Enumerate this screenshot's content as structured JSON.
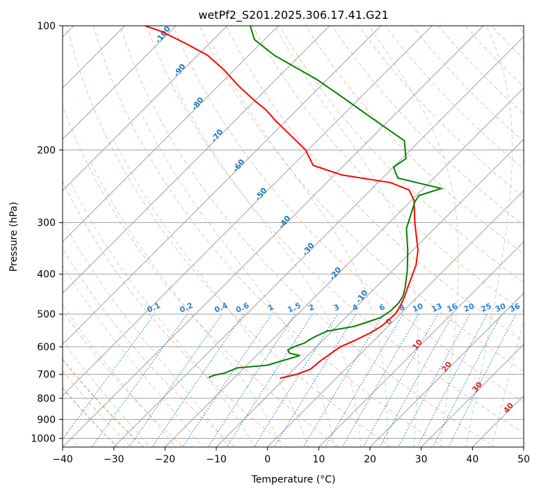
{
  "chart_data": {
    "type": "skew-t",
    "title": "wetPf2_S201.2025.306.17.41.G21",
    "xlabel": "Temperature (°C)",
    "ylabel": "Pressure (hPa)",
    "xlim": [
      -40,
      50
    ],
    "ylim_pressure": [
      1050,
      100
    ],
    "x_ticks": [
      -40,
      -30,
      -20,
      -10,
      0,
      10,
      20,
      30,
      40,
      50
    ],
    "y_ticks": [
      1000,
      900,
      800,
      700,
      600,
      500,
      400,
      300,
      200,
      100
    ],
    "grid": true,
    "colors": {
      "temperature": "#ff0000",
      "dewpoint": "#008000",
      "isotherm": "#a0a0a0",
      "isobar": "#a0a0a0",
      "dry_adiabat": "#f4a582",
      "moist_adiabat": "#92c592",
      "mixing_ratio": "#2b83d6",
      "kappa_marker": "#d2b48c",
      "ice_label": "#1f77b4",
      "warm_label": "#d62728",
      "zero_label": "#7f7f7f"
    },
    "series": [
      {
        "key": "temperature",
        "points": [
          [
            -11,
            715
          ],
          [
            -8.5,
            700
          ],
          [
            -6.8,
            680
          ],
          [
            -6.5,
            650
          ],
          [
            -5.8,
            620
          ],
          [
            -5.3,
            600
          ],
          [
            -3.8,
            580
          ],
          [
            -2.2,
            555
          ],
          [
            -1.3,
            535
          ],
          [
            -1.0,
            500
          ],
          [
            -1.5,
            480
          ],
          [
            -2.5,
            455
          ],
          [
            -3.8,
            430
          ],
          [
            -6.5,
            380
          ],
          [
            -9.0,
            350
          ],
          [
            -12.5,
            320
          ],
          [
            -15.0,
            300
          ],
          [
            -17.5,
            280
          ],
          [
            -19.5,
            265
          ],
          [
            -22.5,
            250
          ],
          [
            -27.5,
            240
          ],
          [
            -38.5,
            230
          ],
          [
            -46,
            218
          ],
          [
            -50.5,
            200
          ],
          [
            -56,
            185
          ],
          [
            -62,
            170
          ],
          [
            -66,
            160
          ],
          [
            -70,
            152
          ],
          [
            -76,
            140
          ],
          [
            -82,
            128
          ],
          [
            -88,
            118
          ],
          [
            -95,
            110
          ],
          [
            -102,
            103
          ],
          [
            -106,
            100
          ]
        ]
      },
      {
        "key": "dewpoint",
        "points": [
          [
            -24.7,
            715
          ],
          [
            -25,
            710
          ],
          [
            -24.2,
            702
          ],
          [
            -22.8,
            695
          ],
          [
            -21.3,
            675
          ],
          [
            -16,
            665
          ],
          [
            -11.5,
            630
          ],
          [
            -14,
            622
          ],
          [
            -15,
            610
          ],
          [
            -14.2,
            598
          ],
          [
            -13,
            587
          ],
          [
            -12.8,
            578
          ],
          [
            -12.1,
            565
          ],
          [
            -11,
            550
          ],
          [
            -6.5,
            535
          ],
          [
            -3.2,
            510
          ],
          [
            -2.5,
            490
          ],
          [
            -2.5,
            470
          ],
          [
            -3.0,
            452
          ],
          [
            -4.3,
            430
          ],
          [
            -7.3,
            390
          ],
          [
            -11,
            350
          ],
          [
            -15.5,
            310
          ],
          [
            -17.5,
            285
          ],
          [
            -19.0,
            268
          ],
          [
            -19.5,
            258
          ],
          [
            -16.5,
            248
          ],
          [
            -27,
            234
          ],
          [
            -30,
            220
          ],
          [
            -29.2,
            210
          ],
          [
            -33,
            190
          ],
          [
            -45,
            165
          ],
          [
            -53,
            150
          ],
          [
            -62,
            135
          ],
          [
            -75,
            118
          ],
          [
            -82,
            108
          ],
          [
            -85.5,
            100
          ]
        ]
      }
    ],
    "dry_adiabat_labels": [
      -100,
      -90,
      -80,
      -70,
      -60,
      -50,
      -40,
      -30,
      -20,
      -10,
      0,
      10,
      20,
      30,
      40
    ],
    "mixing_ratio_labels": [
      "0.1",
      "0.2",
      "0.4",
      "0.6",
      "1",
      "1.5",
      "2",
      "3",
      "4",
      "6",
      "8",
      "10",
      "13",
      "16",
      "20",
      "25",
      "30",
      "36"
    ]
  }
}
